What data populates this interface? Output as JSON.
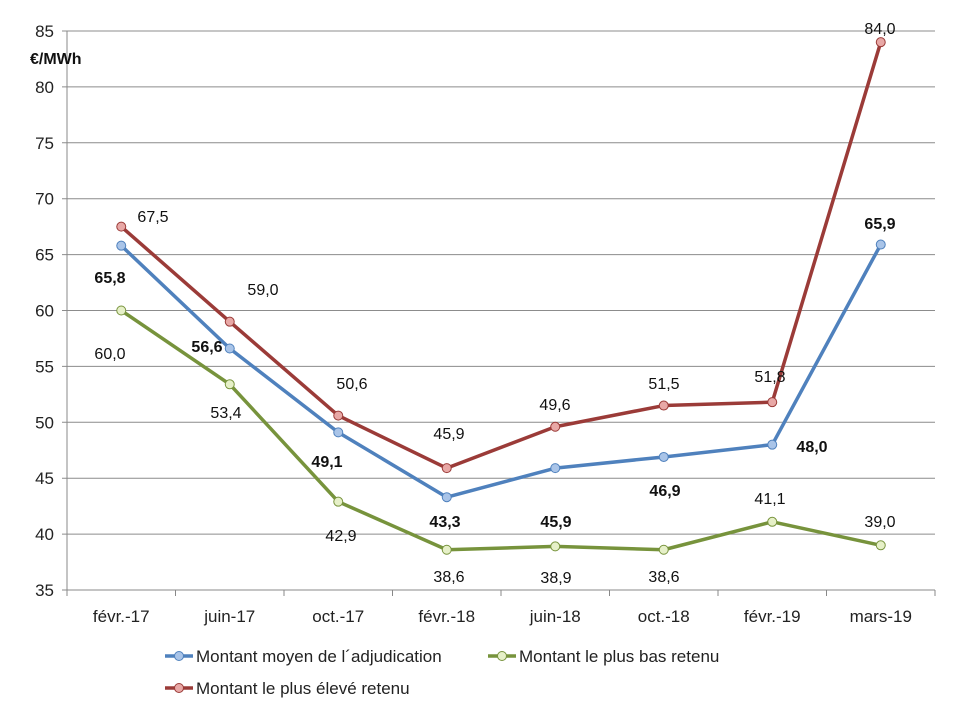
{
  "chart_data": {
    "type": "line",
    "ylabel": "€/MWh",
    "ylim": [
      35,
      85
    ],
    "yticks": [
      35,
      40,
      45,
      50,
      55,
      60,
      65,
      70,
      75,
      80,
      85
    ],
    "grid": "horizontal",
    "legend_position": "bottom",
    "categories": [
      "févr.-17",
      "juin-17",
      "oct.-17",
      "févr.-18",
      "juin-18",
      "oct.-18",
      "févr.-19",
      "mars-19"
    ],
    "series": [
      {
        "name": "Montant moyen de l´adjudication",
        "color": "#4F81BD",
        "marker_fill": "#A9C4E8",
        "bold_labels": true,
        "values": [
          65.8,
          56.6,
          49.1,
          43.3,
          45.9,
          46.9,
          48.0,
          65.9
        ],
        "labels": [
          "65,8",
          "56,6",
          "49,1",
          "43,3",
          "45,9",
          "46,9",
          "48,0",
          "65,9"
        ]
      },
      {
        "name": "Montant le plus bas retenu",
        "color": "#77933C",
        "marker_fill": "#E6F0C8",
        "bold_labels": false,
        "values": [
          60.0,
          53.4,
          42.9,
          38.6,
          38.9,
          38.6,
          41.1,
          39.0
        ],
        "labels": [
          "60,0",
          "53,4",
          "42,9",
          "38,6",
          "38,9",
          "38,6",
          "41,1",
          "39,0"
        ]
      },
      {
        "name": "Montant le plus élevé retenu",
        "color": "#9B3B38",
        "marker_fill": "#E8A8A6",
        "bold_labels": false,
        "values": [
          67.5,
          59.0,
          50.6,
          45.9,
          49.6,
          51.5,
          51.8,
          84.0
        ],
        "labels": [
          "67,5",
          "59,0",
          "50,6",
          "45,9",
          "49,6",
          "51,5",
          "51,8",
          "84,0"
        ]
      }
    ]
  }
}
